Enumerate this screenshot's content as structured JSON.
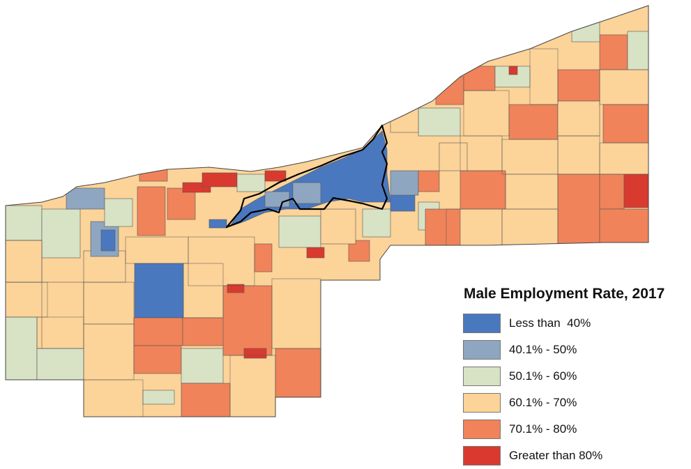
{
  "legend": {
    "title": "Male Employment Rate, 2017",
    "items": [
      {
        "label": "Less than  40%",
        "color": "#4a78bf"
      },
      {
        "label": "40.1% - 50%",
        "color": "#8ea6c0"
      },
      {
        "label": "50.1% - 60%",
        "color": "#d8e2c4"
      },
      {
        "label": "60.1% - 70%",
        "color": "#fcd398"
      },
      {
        "label": "70.1% - 80%",
        "color": "#f0835a"
      },
      {
        "label": "Greater than 80%",
        "color": "#d93a2f"
      }
    ]
  }
}
